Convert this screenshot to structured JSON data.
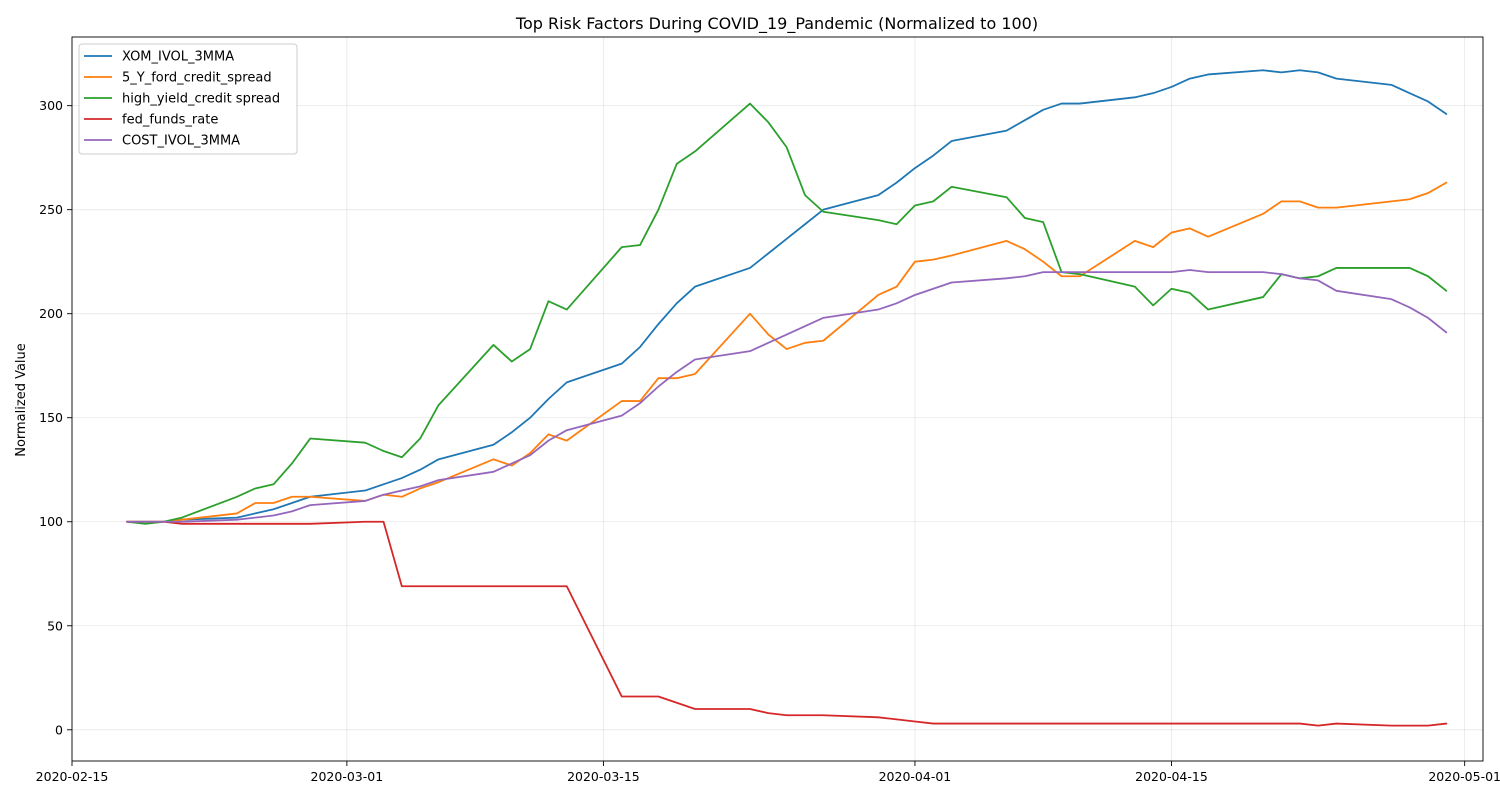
{
  "chart_data": {
    "type": "line",
    "title": "Top Risk Factors During COVID_19_Pandemic (Normalized to 100)",
    "xlabel": "",
    "ylabel": "Normalized Value",
    "xlim": [
      "2020-02-15",
      "2020-05-02"
    ],
    "ylim": [
      -15,
      333
    ],
    "x_ticks": [
      "2020-02-15",
      "2020-03-01",
      "2020-03-15",
      "2020-04-01",
      "2020-04-15",
      "2020-05-01"
    ],
    "y_ticks": [
      0,
      50,
      100,
      150,
      200,
      250,
      300
    ],
    "grid": true,
    "legend_position": "upper-left",
    "series": [
      {
        "name": "XOM_IVOL_3MMA",
        "color": "#1f77b4",
        "points": [
          [
            "2020-02-18",
            100
          ],
          [
            "2020-02-19",
            100
          ],
          [
            "2020-02-20",
            100
          ],
          [
            "2020-02-21",
            101
          ],
          [
            "2020-02-24",
            102
          ],
          [
            "2020-02-25",
            104
          ],
          [
            "2020-02-26",
            106
          ],
          [
            "2020-02-27",
            109
          ],
          [
            "2020-02-28",
            112
          ],
          [
            "2020-03-02",
            115
          ],
          [
            "2020-03-03",
            118
          ],
          [
            "2020-03-04",
            121
          ],
          [
            "2020-03-05",
            125
          ],
          [
            "2020-03-06",
            130
          ],
          [
            "2020-03-09",
            137
          ],
          [
            "2020-03-10",
            143
          ],
          [
            "2020-03-11",
            150
          ],
          [
            "2020-03-12",
            159
          ],
          [
            "2020-03-13",
            167
          ],
          [
            "2020-03-16",
            176
          ],
          [
            "2020-03-17",
            184
          ],
          [
            "2020-03-18",
            195
          ],
          [
            "2020-03-19",
            205
          ],
          [
            "2020-03-20",
            213
          ],
          [
            "2020-03-23",
            222
          ],
          [
            "2020-03-24",
            229
          ],
          [
            "2020-03-25",
            236
          ],
          [
            "2020-03-26",
            243
          ],
          [
            "2020-03-27",
            250
          ],
          [
            "2020-03-30",
            257
          ],
          [
            "2020-03-31",
            263
          ],
          [
            "2020-04-01",
            270
          ],
          [
            "2020-04-02",
            276
          ],
          [
            "2020-04-03",
            283
          ],
          [
            "2020-04-06",
            288
          ],
          [
            "2020-04-07",
            293
          ],
          [
            "2020-04-08",
            298
          ],
          [
            "2020-04-09",
            301
          ],
          [
            "2020-04-10",
            301
          ],
          [
            "2020-04-13",
            304
          ],
          [
            "2020-04-14",
            306
          ],
          [
            "2020-04-15",
            309
          ],
          [
            "2020-04-16",
            313
          ],
          [
            "2020-04-17",
            315
          ],
          [
            "2020-04-20",
            317
          ],
          [
            "2020-04-21",
            316
          ],
          [
            "2020-04-22",
            317
          ],
          [
            "2020-04-23",
            316
          ],
          [
            "2020-04-24",
            313
          ],
          [
            "2020-04-27",
            310
          ],
          [
            "2020-04-28",
            306
          ],
          [
            "2020-04-29",
            302
          ],
          [
            "2020-04-30",
            296
          ]
        ]
      },
      {
        "name": "5_Y_ford_credit_spread",
        "color": "#ff7f0e",
        "points": [
          [
            "2020-02-18",
            100
          ],
          [
            "2020-02-19",
            100
          ],
          [
            "2020-02-20",
            100
          ],
          [
            "2020-02-21",
            101
          ],
          [
            "2020-02-24",
            104
          ],
          [
            "2020-02-25",
            109
          ],
          [
            "2020-02-26",
            109
          ],
          [
            "2020-02-27",
            112
          ],
          [
            "2020-02-28",
            112
          ],
          [
            "2020-03-02",
            110
          ],
          [
            "2020-03-03",
            113
          ],
          [
            "2020-03-04",
            112
          ],
          [
            "2020-03-05",
            116
          ],
          [
            "2020-03-06",
            119
          ],
          [
            "2020-03-09",
            130
          ],
          [
            "2020-03-10",
            127
          ],
          [
            "2020-03-11",
            133
          ],
          [
            "2020-03-12",
            142
          ],
          [
            "2020-03-13",
            139
          ],
          [
            "2020-03-16",
            158
          ],
          [
            "2020-03-17",
            158
          ],
          [
            "2020-03-18",
            169
          ],
          [
            "2020-03-19",
            169
          ],
          [
            "2020-03-20",
            171
          ],
          [
            "2020-03-23",
            200
          ],
          [
            "2020-03-24",
            190
          ],
          [
            "2020-03-25",
            183
          ],
          [
            "2020-03-26",
            186
          ],
          [
            "2020-03-27",
            187
          ],
          [
            "2020-03-30",
            209
          ],
          [
            "2020-03-31",
            213
          ],
          [
            "2020-04-01",
            225
          ],
          [
            "2020-04-02",
            226
          ],
          [
            "2020-04-03",
            228
          ],
          [
            "2020-04-06",
            235
          ],
          [
            "2020-04-07",
            231
          ],
          [
            "2020-04-08",
            225
          ],
          [
            "2020-04-09",
            218
          ],
          [
            "2020-04-10",
            218
          ],
          [
            "2020-04-13",
            235
          ],
          [
            "2020-04-14",
            232
          ],
          [
            "2020-04-15",
            239
          ],
          [
            "2020-04-16",
            241
          ],
          [
            "2020-04-17",
            237
          ],
          [
            "2020-04-20",
            248
          ],
          [
            "2020-04-21",
            254
          ],
          [
            "2020-04-22",
            254
          ],
          [
            "2020-04-23",
            251
          ],
          [
            "2020-04-24",
            251
          ],
          [
            "2020-04-27",
            254
          ],
          [
            "2020-04-28",
            255
          ],
          [
            "2020-04-29",
            258
          ],
          [
            "2020-04-30",
            263
          ]
        ]
      },
      {
        "name": "high_yield_credit spread",
        "color": "#2ca02c",
        "points": [
          [
            "2020-02-18",
            100
          ],
          [
            "2020-02-19",
            99
          ],
          [
            "2020-02-20",
            100
          ],
          [
            "2020-02-21",
            102
          ],
          [
            "2020-02-24",
            112
          ],
          [
            "2020-02-25",
            116
          ],
          [
            "2020-02-26",
            118
          ],
          [
            "2020-02-27",
            128
          ],
          [
            "2020-02-28",
            140
          ],
          [
            "2020-03-02",
            138
          ],
          [
            "2020-03-03",
            134
          ],
          [
            "2020-03-04",
            131
          ],
          [
            "2020-03-05",
            140
          ],
          [
            "2020-03-06",
            156
          ],
          [
            "2020-03-09",
            185
          ],
          [
            "2020-03-10",
            177
          ],
          [
            "2020-03-11",
            183
          ],
          [
            "2020-03-12",
            206
          ],
          [
            "2020-03-13",
            202
          ],
          [
            "2020-03-16",
            232
          ],
          [
            "2020-03-17",
            233
          ],
          [
            "2020-03-18",
            250
          ],
          [
            "2020-03-19",
            272
          ],
          [
            "2020-03-20",
            278
          ],
          [
            "2020-03-23",
            301
          ],
          [
            "2020-03-24",
            292
          ],
          [
            "2020-03-25",
            280
          ],
          [
            "2020-03-26",
            257
          ],
          [
            "2020-03-27",
            249
          ],
          [
            "2020-03-30",
            245
          ],
          [
            "2020-03-31",
            243
          ],
          [
            "2020-04-01",
            252
          ],
          [
            "2020-04-02",
            254
          ],
          [
            "2020-04-03",
            261
          ],
          [
            "2020-04-06",
            256
          ],
          [
            "2020-04-07",
            246
          ],
          [
            "2020-04-08",
            244
          ],
          [
            "2020-04-09",
            220
          ],
          [
            "2020-04-10",
            219
          ],
          [
            "2020-04-13",
            213
          ],
          [
            "2020-04-14",
            204
          ],
          [
            "2020-04-15",
            212
          ],
          [
            "2020-04-16",
            210
          ],
          [
            "2020-04-17",
            202
          ],
          [
            "2020-04-20",
            208
          ],
          [
            "2020-04-21",
            219
          ],
          [
            "2020-04-22",
            217
          ],
          [
            "2020-04-23",
            218
          ],
          [
            "2020-04-24",
            222
          ],
          [
            "2020-04-27",
            222
          ],
          [
            "2020-04-28",
            222
          ],
          [
            "2020-04-29",
            218
          ],
          [
            "2020-04-30",
            211
          ]
        ]
      },
      {
        "name": "fed_funds_rate",
        "color": "#d62728",
        "points": [
          [
            "2020-02-18",
            100
          ],
          [
            "2020-02-19",
            100
          ],
          [
            "2020-02-20",
            100
          ],
          [
            "2020-02-21",
            99
          ],
          [
            "2020-02-24",
            99
          ],
          [
            "2020-02-25",
            99
          ],
          [
            "2020-02-26",
            99
          ],
          [
            "2020-02-27",
            99
          ],
          [
            "2020-02-28",
            99
          ],
          [
            "2020-03-02",
            100
          ],
          [
            "2020-03-03",
            100
          ],
          [
            "2020-03-04",
            69
          ],
          [
            "2020-03-05",
            69
          ],
          [
            "2020-03-06",
            69
          ],
          [
            "2020-03-09",
            69
          ],
          [
            "2020-03-10",
            69
          ],
          [
            "2020-03-11",
            69
          ],
          [
            "2020-03-12",
            69
          ],
          [
            "2020-03-13",
            69
          ],
          [
            "2020-03-16",
            16
          ],
          [
            "2020-03-17",
            16
          ],
          [
            "2020-03-18",
            16
          ],
          [
            "2020-03-19",
            13
          ],
          [
            "2020-03-20",
            10
          ],
          [
            "2020-03-23",
            10
          ],
          [
            "2020-03-24",
            8
          ],
          [
            "2020-03-25",
            7
          ],
          [
            "2020-03-26",
            7
          ],
          [
            "2020-03-27",
            7
          ],
          [
            "2020-03-30",
            6
          ],
          [
            "2020-03-31",
            5
          ],
          [
            "2020-04-01",
            4
          ],
          [
            "2020-04-02",
            3
          ],
          [
            "2020-04-03",
            3
          ],
          [
            "2020-04-06",
            3
          ],
          [
            "2020-04-07",
            3
          ],
          [
            "2020-04-08",
            3
          ],
          [
            "2020-04-09",
            3
          ],
          [
            "2020-04-10",
            3
          ],
          [
            "2020-04-13",
            3
          ],
          [
            "2020-04-14",
            3
          ],
          [
            "2020-04-15",
            3
          ],
          [
            "2020-04-16",
            3
          ],
          [
            "2020-04-17",
            3
          ],
          [
            "2020-04-20",
            3
          ],
          [
            "2020-04-21",
            3
          ],
          [
            "2020-04-22",
            3
          ],
          [
            "2020-04-23",
            2
          ],
          [
            "2020-04-24",
            3
          ],
          [
            "2020-04-27",
            2
          ],
          [
            "2020-04-28",
            2
          ],
          [
            "2020-04-29",
            2
          ],
          [
            "2020-04-30",
            3
          ]
        ]
      },
      {
        "name": "COST_IVOL_3MMA",
        "color": "#9467bd",
        "points": [
          [
            "2020-02-18",
            100
          ],
          [
            "2020-02-19",
            100
          ],
          [
            "2020-02-20",
            100
          ],
          [
            "2020-02-21",
            100
          ],
          [
            "2020-02-24",
            101
          ],
          [
            "2020-02-25",
            102
          ],
          [
            "2020-02-26",
            103
          ],
          [
            "2020-02-27",
            105
          ],
          [
            "2020-02-28",
            108
          ],
          [
            "2020-03-02",
            110
          ],
          [
            "2020-03-03",
            113
          ],
          [
            "2020-03-04",
            115
          ],
          [
            "2020-03-05",
            117
          ],
          [
            "2020-03-06",
            120
          ],
          [
            "2020-03-09",
            124
          ],
          [
            "2020-03-10",
            128
          ],
          [
            "2020-03-11",
            132
          ],
          [
            "2020-03-12",
            139
          ],
          [
            "2020-03-13",
            144
          ],
          [
            "2020-03-16",
            151
          ],
          [
            "2020-03-17",
            157
          ],
          [
            "2020-03-18",
            165
          ],
          [
            "2020-03-19",
            172
          ],
          [
            "2020-03-20",
            178
          ],
          [
            "2020-03-23",
            182
          ],
          [
            "2020-03-24",
            186
          ],
          [
            "2020-03-25",
            190
          ],
          [
            "2020-03-26",
            194
          ],
          [
            "2020-03-27",
            198
          ],
          [
            "2020-03-30",
            202
          ],
          [
            "2020-03-31",
            205
          ],
          [
            "2020-04-01",
            209
          ],
          [
            "2020-04-02",
            212
          ],
          [
            "2020-04-03",
            215
          ],
          [
            "2020-04-06",
            217
          ],
          [
            "2020-04-07",
            218
          ],
          [
            "2020-04-08",
            220
          ],
          [
            "2020-04-09",
            220
          ],
          [
            "2020-04-10",
            220
          ],
          [
            "2020-04-13",
            220
          ],
          [
            "2020-04-14",
            220
          ],
          [
            "2020-04-15",
            220
          ],
          [
            "2020-04-16",
            221
          ],
          [
            "2020-04-17",
            220
          ],
          [
            "2020-04-20",
            220
          ],
          [
            "2020-04-21",
            219
          ],
          [
            "2020-04-22",
            217
          ],
          [
            "2020-04-23",
            216
          ],
          [
            "2020-04-24",
            211
          ],
          [
            "2020-04-27",
            207
          ],
          [
            "2020-04-28",
            203
          ],
          [
            "2020-04-29",
            198
          ],
          [
            "2020-04-30",
            191
          ]
        ]
      }
    ]
  }
}
